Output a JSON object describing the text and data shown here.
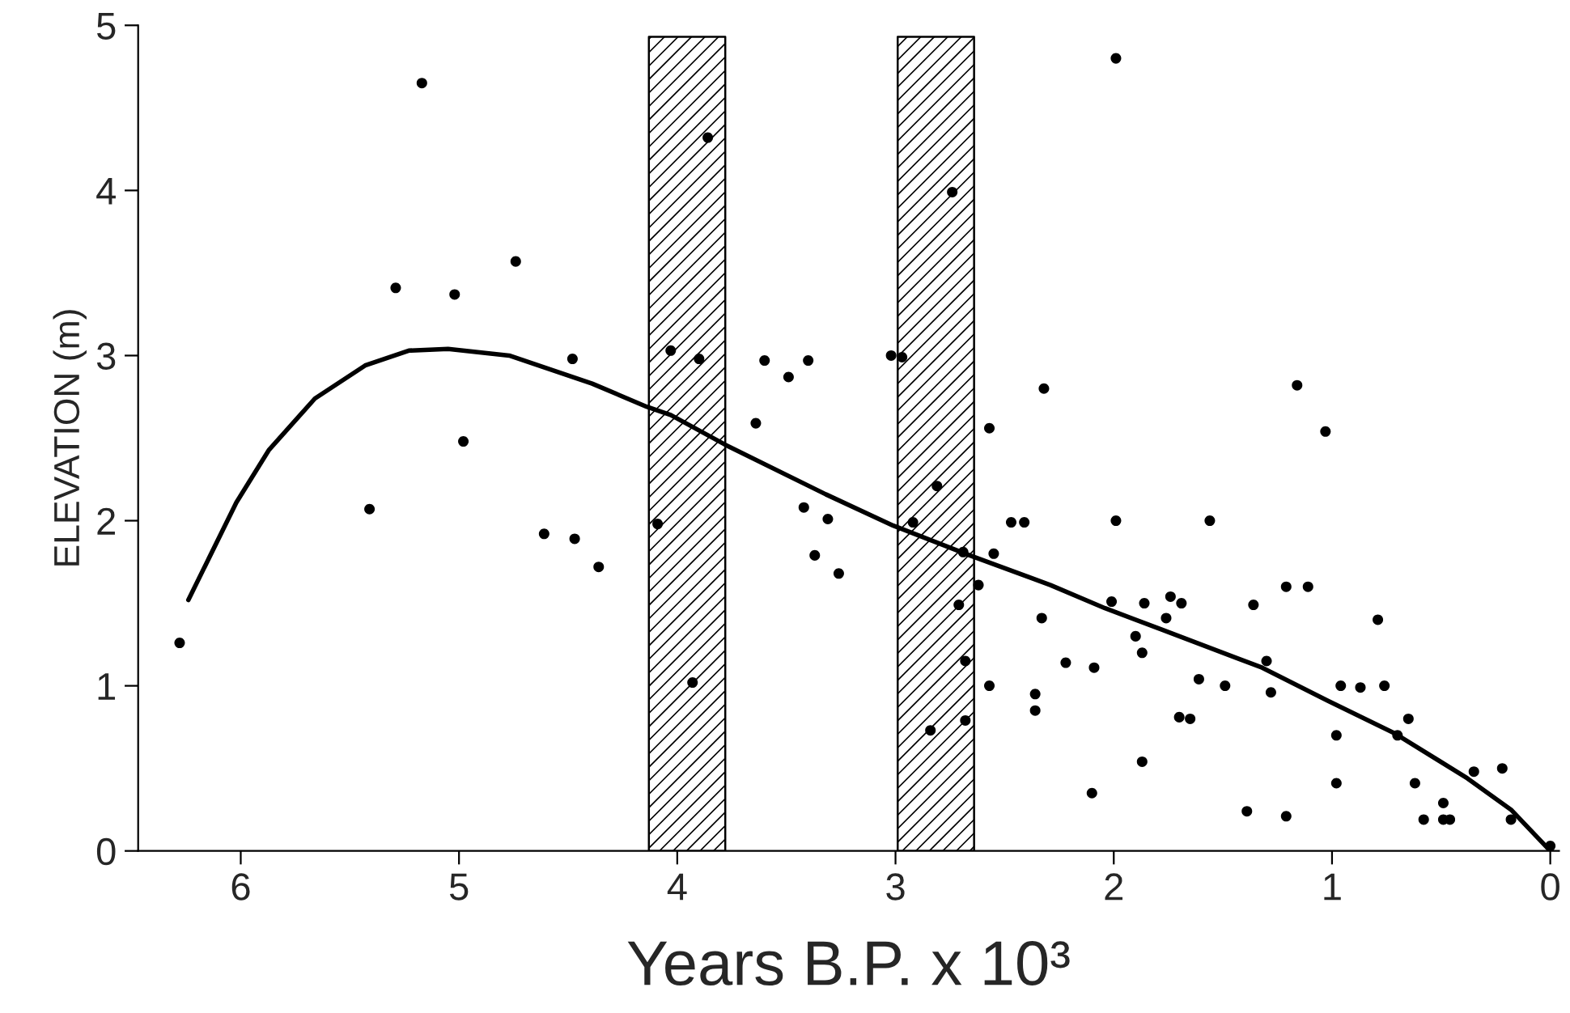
{
  "chart_data": {
    "type": "scatter",
    "xlabel": "Years B.P. x 10³",
    "ylabel": "ELEVATION (m)",
    "xlim": [
      6.47,
      -0.04
    ],
    "ylim": [
      0,
      5
    ],
    "xticks": [
      6,
      5,
      4,
      3,
      2,
      1,
      0
    ],
    "yticks": [
      0,
      1,
      2,
      3,
      4,
      5
    ],
    "grid": false,
    "legend": false,
    "bands": [
      {
        "axis": "x",
        "from": 4.13,
        "to": 3.78
      },
      {
        "axis": "x",
        "from": 2.99,
        "to": 2.64
      }
    ],
    "series": [
      {
        "color": "#000000",
        "marker": "circle",
        "x": [
          6.28,
          5.17,
          5.29,
          5.02,
          4.74,
          4.48,
          4.98,
          5.41,
          4.61,
          4.47,
          4.36,
          3.86,
          4.03,
          3.9,
          3.6,
          3.49,
          3.4,
          3.64,
          3.02,
          2.97,
          2.74,
          4.09,
          3.93,
          3.42,
          3.31,
          3.37,
          3.26,
          2.81,
          2.92,
          2.57,
          2.47,
          2.41,
          2.69,
          2.55,
          2.62,
          2.71,
          2.33,
          2.68,
          2.57,
          2.22,
          2.09,
          2.36,
          2.36,
          2.84,
          2.68,
          2.1,
          2.32,
          1.99,
          1.99,
          1.56,
          2.01,
          1.86,
          1.74,
          1.69,
          1.76,
          1.9,
          1.87,
          1.87,
          1.7,
          1.65,
          1.61,
          1.49,
          1.36,
          1.3,
          1.28,
          1.39,
          1.21,
          1.21,
          1.11,
          1.16,
          1.03,
          0.79,
          0.96,
          0.87,
          0.76,
          0.98,
          0.98,
          0.65,
          0.7,
          0.62,
          0.58,
          0.49,
          0.49,
          0.46,
          0.35,
          0.22,
          0.18,
          0.0
        ],
        "values": [
          1.26,
          4.65,
          3.41,
          3.37,
          3.57,
          2.98,
          2.48,
          2.07,
          1.92,
          1.89,
          1.72,
          4.32,
          3.03,
          2.98,
          2.97,
          2.87,
          2.97,
          2.59,
          3.0,
          2.99,
          3.99,
          1.98,
          1.02,
          2.08,
          2.01,
          1.79,
          1.68,
          2.21,
          1.99,
          2.56,
          1.99,
          1.99,
          1.81,
          1.8,
          1.61,
          1.49,
          1.41,
          1.15,
          1.0,
          1.14,
          1.11,
          0.95,
          0.85,
          0.73,
          0.79,
          0.35,
          2.8,
          4.8,
          2.0,
          2.0,
          1.51,
          1.5,
          1.54,
          1.5,
          1.41,
          1.3,
          1.2,
          0.54,
          0.81,
          0.8,
          1.04,
          1.0,
          1.49,
          1.15,
          0.96,
          0.24,
          0.21,
          1.6,
          1.6,
          2.82,
          2.54,
          1.4,
          1.0,
          0.99,
          1.0,
          0.7,
          0.41,
          0.8,
          0.7,
          0.41,
          0.19,
          0.29,
          0.19,
          0.19,
          0.48,
          0.5,
          0.19,
          0.03
        ]
      },
      {
        "type": "line",
        "color": "#000000",
        "marker": "none",
        "line_style": "solid",
        "x": [
          6.24,
          6.02,
          5.87,
          5.66,
          5.43,
          5.23,
          5.05,
          4.77,
          4.39,
          4.14,
          4.03,
          3.78,
          3.32,
          3.01,
          2.66,
          2.29,
          2.04,
          1.78,
          1.32,
          1.02,
          0.71,
          0.38,
          0.18,
          0.0
        ],
        "values": [
          1.52,
          2.11,
          2.43,
          2.74,
          2.94,
          3.03,
          3.04,
          3.0,
          2.83,
          2.69,
          2.64,
          2.46,
          2.16,
          1.97,
          1.79,
          1.61,
          1.47,
          1.34,
          1.11,
          0.91,
          0.71,
          0.44,
          0.25,
          0.0
        ]
      }
    ]
  }
}
